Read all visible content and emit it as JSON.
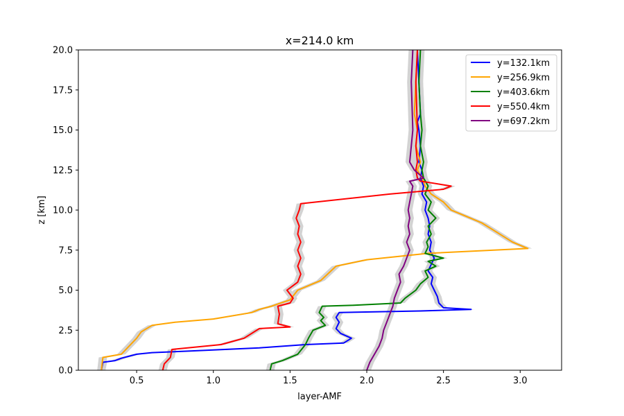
{
  "chart_data": {
    "type": "line",
    "title": "x=214.0 km",
    "xlabel": "layer-AMF",
    "ylabel": "z [km]",
    "xlim": [
      0.12,
      3.27
    ],
    "ylim": [
      0,
      20
    ],
    "xticks": [
      0.5,
      1.0,
      1.5,
      2.0,
      2.5,
      3.0
    ],
    "xtick_labels": [
      "0.5",
      "1.0",
      "1.5",
      "2.0",
      "2.5",
      "3.0"
    ],
    "yticks": [
      0,
      2.5,
      5,
      7.5,
      10,
      12.5,
      15,
      17.5,
      20
    ],
    "ytick_labels": [
      "0.0",
      "2.5",
      "5.0",
      "7.5",
      "10.0",
      "12.5",
      "15.0",
      "17.5",
      "20.0"
    ],
    "grid": false,
    "legend_position": "top-right",
    "uncertainty_band_color": "#d3d3d3",
    "series": [
      {
        "name": "y=132.1km",
        "color": "#0000ff",
        "x": [
          0.27,
          0.28,
          0.36,
          0.4,
          0.5,
          0.6,
          0.85,
          1.3,
          1.6,
          1.85,
          1.9,
          1.83,
          1.8,
          1.82,
          1.8,
          1.82,
          2.35,
          2.68,
          2.5,
          2.47,
          2.46,
          2.44,
          2.42,
          2.43,
          2.4,
          2.42,
          2.44,
          2.41,
          2.42,
          2.4,
          2.41,
          2.4,
          2.38,
          2.39,
          2.36,
          2.37,
          2.35,
          2.36,
          2.34,
          2.35,
          2.34,
          2.33,
          2.35,
          2.34,
          2.33
        ],
        "y": [
          0.0,
          0.5,
          0.6,
          0.75,
          1.0,
          1.1,
          1.2,
          1.4,
          1.6,
          1.7,
          2.0,
          2.3,
          2.6,
          3.0,
          3.3,
          3.6,
          3.7,
          3.8,
          3.9,
          4.2,
          4.6,
          5.0,
          5.4,
          5.8,
          6.2,
          6.6,
          7.0,
          7.5,
          8.0,
          8.5,
          9.0,
          9.5,
          10.0,
          10.5,
          11.0,
          11.5,
          12.0,
          12.5,
          13.0,
          14.0,
          15.0,
          15.5,
          16.0,
          18.0,
          20.0
        ]
      },
      {
        "name": "y=256.9km",
        "color": "#ffa500",
        "x": [
          0.27,
          0.28,
          0.4,
          0.45,
          0.5,
          0.53,
          0.6,
          0.75,
          1.0,
          1.25,
          1.3,
          1.38,
          1.5,
          1.55,
          1.7,
          1.8,
          2.0,
          2.2,
          2.4,
          3.05,
          2.95,
          2.85,
          2.75,
          2.65,
          2.55,
          2.5,
          2.42,
          2.38,
          2.36,
          2.33,
          2.35,
          2.32,
          2.33,
          2.31,
          2.32,
          2.33
        ],
        "y": [
          0.0,
          0.8,
          1.0,
          1.5,
          2.0,
          2.4,
          2.8,
          3.0,
          3.2,
          3.6,
          3.8,
          4.0,
          4.4,
          5.0,
          5.6,
          6.5,
          6.9,
          7.1,
          7.3,
          7.6,
          8.0,
          8.6,
          9.2,
          9.6,
          10.0,
          10.5,
          11.0,
          11.5,
          12.0,
          12.5,
          13.0,
          14.0,
          15.0,
          16.0,
          18.0,
          20.0
        ]
      },
      {
        "name": "y=403.6km",
        "color": "#008000",
        "x": [
          1.37,
          1.38,
          1.45,
          1.55,
          1.6,
          1.62,
          1.65,
          1.73,
          1.7,
          1.72,
          1.69,
          1.71,
          1.9,
          2.22,
          2.25,
          2.32,
          2.35,
          2.4,
          2.38,
          2.45,
          2.4,
          2.5,
          2.38,
          2.4,
          2.39,
          2.42,
          2.4,
          2.45,
          2.4,
          2.42,
          2.38,
          2.4,
          2.37,
          2.36,
          2.37,
          2.35,
          2.36,
          2.35,
          2.34,
          2.35
        ],
        "y": [
          0.0,
          0.4,
          0.6,
          1.0,
          1.6,
          2.0,
          2.5,
          2.8,
          3.1,
          3.3,
          3.6,
          4.0,
          4.05,
          4.2,
          4.5,
          5.0,
          5.4,
          5.8,
          6.2,
          6.5,
          6.8,
          7.0,
          7.3,
          7.7,
          8.0,
          8.5,
          9.0,
          9.5,
          10.0,
          10.5,
          11.0,
          11.5,
          12.0,
          12.5,
          13.0,
          14.0,
          15.0,
          16.0,
          18.0,
          20.0
        ]
      },
      {
        "name": "y=550.4km",
        "color": "#ff0000",
        "x": [
          0.67,
          0.68,
          0.72,
          0.73,
          1.05,
          1.2,
          1.3,
          1.5,
          1.42,
          1.43,
          1.42,
          1.5,
          1.52,
          1.48,
          1.55,
          1.57,
          1.55,
          1.57,
          1.55,
          1.57,
          1.55,
          1.56,
          1.54,
          1.56,
          1.57,
          2.15,
          2.5,
          2.55,
          2.42,
          2.35,
          2.33,
          2.32,
          2.33,
          2.32,
          2.33,
          2.32,
          2.33
        ],
        "y": [
          0.0,
          0.4,
          0.8,
          1.3,
          1.6,
          2.0,
          2.6,
          2.7,
          2.9,
          3.5,
          4.0,
          4.2,
          4.5,
          5.0,
          5.5,
          6.0,
          6.5,
          7.0,
          7.5,
          8.0,
          8.5,
          9.0,
          9.5,
          10.0,
          10.4,
          11.0,
          11.3,
          11.5,
          11.7,
          11.8,
          12.0,
          12.5,
          13.0,
          14.0,
          15.0,
          18.0,
          20.0
        ]
      },
      {
        "name": "y=697.2km",
        "color": "#800080",
        "x": [
          2.0,
          2.02,
          2.05,
          2.08,
          2.1,
          2.11,
          2.13,
          2.15,
          2.17,
          2.18,
          2.2,
          2.22,
          2.21,
          2.24,
          2.26,
          2.28,
          2.26,
          2.28,
          2.27,
          2.28,
          2.27,
          2.28,
          2.29,
          2.3,
          2.28,
          2.37,
          2.31,
          2.28,
          2.29,
          2.3,
          2.29,
          2.3
        ],
        "y": [
          0.0,
          0.5,
          1.0,
          1.5,
          2.0,
          2.5,
          3.0,
          3.5,
          4.0,
          4.5,
          5.0,
          5.5,
          6.0,
          6.5,
          7.0,
          7.5,
          8.0,
          8.5,
          9.0,
          9.5,
          10.0,
          10.5,
          11.0,
          11.5,
          11.8,
          12.0,
          12.5,
          13.0,
          14.0,
          15.0,
          18.0,
          20.0
        ]
      }
    ]
  }
}
